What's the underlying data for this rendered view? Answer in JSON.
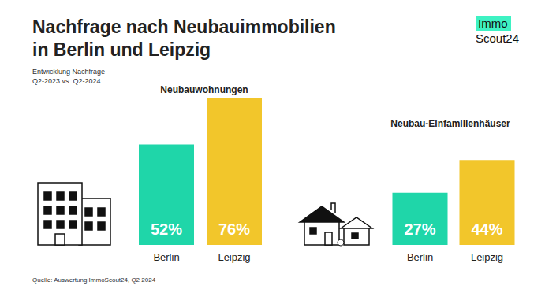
{
  "title": "Nachfrage nach Neubauimmobilien\nin Berlin und Leipzig",
  "subtitle": "Entwicklung Nachfrage\nQ2-2023 vs. Q2-2024",
  "source": "Quelle: Auswertung ImmoScout24, Q2 2024",
  "logo": [
    "Immo",
    "Scout24"
  ],
  "chart_data": [
    {
      "type": "bar",
      "title": "Neubauwohnungen",
      "categories": [
        "Berlin",
        "Leipzig"
      ],
      "values": [
        52,
        76
      ],
      "value_labels": [
        "52%",
        "76%"
      ],
      "colors": [
        "#1fd6a9",
        "#f2c62b"
      ],
      "ylim": [
        0,
        80
      ],
      "data_labels": true,
      "tick_labels": "x",
      "grid": false
    },
    {
      "type": "bar",
      "title": "Neubau-Einfamilienhäuser",
      "categories": [
        "Berlin",
        "Leipzig"
      ],
      "values": [
        27,
        44
      ],
      "value_labels": [
        "27%",
        "44%"
      ],
      "colors": [
        "#1fd6a9",
        "#f2c62b"
      ],
      "ylim": [
        0,
        80
      ],
      "data_labels": true,
      "tick_labels": "x",
      "grid": false
    }
  ]
}
